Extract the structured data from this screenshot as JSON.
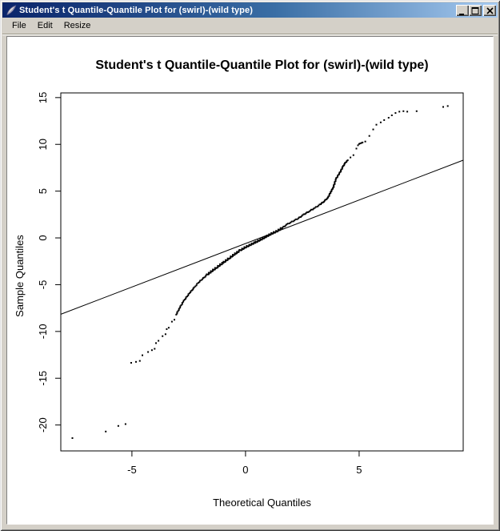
{
  "window": {
    "title": "Student's t Quantile-Quantile Plot for (swirl)-(wild type)",
    "icon": "feather-icon",
    "controls": {
      "minimize": "minimize",
      "maximize": "maximize",
      "close": "close"
    }
  },
  "menu": {
    "items": [
      "File",
      "Edit",
      "Resize"
    ]
  },
  "colors": {
    "titlebar_gradient_start": "#0A246A",
    "titlebar_gradient_end": "#A6CAF0",
    "chrome": "#D4D0C8",
    "plot_background": "#FFFFFF",
    "plot_foreground": "#000000"
  },
  "chart_data": {
    "type": "scatter",
    "title": "Student's t Quantile-Quantile Plot for (swirl)-(wild type)",
    "xlabel": "Theoretical Quantiles",
    "ylabel": "Sample Quantiles",
    "xlim": [
      -8.13,
      9.58
    ],
    "ylim": [
      -22.77,
      15.5
    ],
    "xticks": [
      -5,
      0,
      5
    ],
    "yticks": [
      15,
      10,
      5,
      0,
      -5,
      -10,
      -15,
      -20
    ],
    "grid": false,
    "legend": null,
    "marker": ".",
    "reference_line": {
      "slope": 0.93,
      "intercept": -0.6
    },
    "points_sparse": [
      [
        -7.62,
        -21.4
      ],
      [
        -6.15,
        -20.7
      ],
      [
        -5.6,
        -20.1
      ],
      [
        -5.28,
        -19.9
      ],
      [
        -5.03,
        -13.35
      ],
      [
        -4.82,
        -13.25
      ],
      [
        -4.65,
        -13.15
      ],
      [
        -4.54,
        -12.55
      ],
      [
        -4.29,
        -12.2
      ],
      [
        -4.12,
        -12.0
      ],
      [
        -4.0,
        -11.85
      ],
      [
        -3.94,
        -11.25
      ],
      [
        -3.83,
        -11.0
      ],
      [
        -3.65,
        -10.5
      ],
      [
        -3.52,
        -10.3
      ],
      [
        -3.47,
        -9.75
      ],
      [
        -3.38,
        -9.6
      ],
      [
        -3.24,
        -8.95
      ],
      [
        -3.13,
        -8.75
      ],
      [
        4.62,
        8.6
      ],
      [
        4.75,
        8.85
      ],
      [
        4.88,
        9.55
      ],
      [
        4.95,
        9.9
      ],
      [
        5.0,
        10.05
      ],
      [
        5.05,
        10.1
      ],
      [
        5.1,
        10.15
      ],
      [
        5.15,
        10.2
      ],
      [
        5.27,
        10.3
      ],
      [
        5.45,
        10.9
      ],
      [
        5.62,
        11.6
      ],
      [
        5.76,
        12.1
      ],
      [
        5.95,
        12.35
      ],
      [
        6.1,
        12.6
      ],
      [
        6.3,
        12.85
      ],
      [
        6.44,
        13.1
      ],
      [
        6.6,
        13.35
      ],
      [
        6.77,
        13.5
      ],
      [
        6.95,
        13.55
      ],
      [
        7.12,
        13.5
      ],
      [
        7.53,
        13.55
      ],
      [
        8.7,
        14.0
      ],
      [
        8.9,
        14.1
      ]
    ],
    "curve_dense": [
      [
        -3.05,
        -8.2
      ],
      [
        -2.89,
        -7.45
      ],
      [
        -2.71,
        -6.7
      ],
      [
        -2.57,
        -6.25
      ],
      [
        -2.43,
        -5.8
      ],
      [
        -2.25,
        -5.3
      ],
      [
        -2.08,
        -4.8
      ],
      [
        -1.9,
        -4.4
      ],
      [
        -1.69,
        -3.95
      ],
      [
        -1.48,
        -3.55
      ],
      [
        -1.23,
        -3.1
      ],
      [
        -0.95,
        -2.6
      ],
      [
        -0.7,
        -2.15
      ],
      [
        -0.48,
        -1.75
      ],
      [
        -0.24,
        -1.35
      ],
      [
        0.0,
        -1.0
      ],
      [
        0.25,
        -0.7
      ],
      [
        0.46,
        -0.45
      ],
      [
        0.7,
        -0.15
      ],
      [
        0.92,
        0.15
      ],
      [
        1.15,
        0.45
      ],
      [
        1.39,
        0.72
      ],
      [
        1.63,
        1.1
      ],
      [
        1.87,
        1.5
      ],
      [
        2.1,
        1.8
      ],
      [
        2.33,
        2.1
      ],
      [
        2.57,
        2.5
      ],
      [
        2.8,
        2.85
      ],
      [
        3.05,
        3.2
      ],
      [
        3.27,
        3.55
      ],
      [
        3.45,
        3.9
      ],
      [
        3.63,
        4.3
      ],
      [
        3.75,
        4.9
      ],
      [
        3.87,
        5.45
      ],
      [
        3.98,
        6.3
      ],
      [
        4.08,
        6.7
      ],
      [
        4.18,
        7.1
      ],
      [
        4.28,
        7.6
      ],
      [
        4.4,
        8.05
      ],
      [
        4.5,
        8.3
      ]
    ]
  }
}
